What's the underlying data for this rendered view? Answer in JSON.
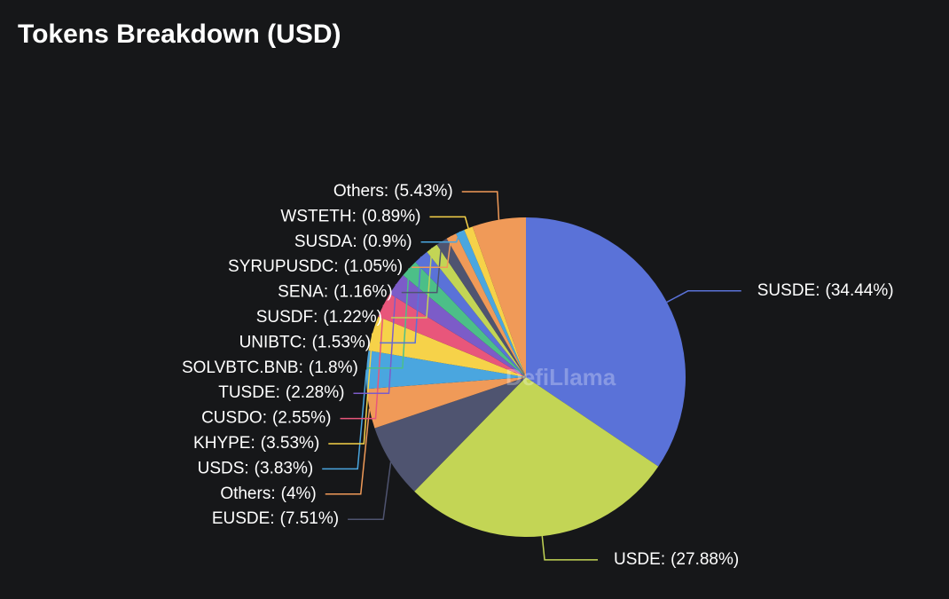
{
  "chart_data": {
    "type": "pie",
    "title": "Tokens Breakdown (USD)",
    "watermark": "DefiLlama",
    "categories": [
      "SUSDE:",
      "USDE:",
      "EUSDE:",
      "Others:",
      "USDS:",
      "KHYPE:",
      "CUSDO:",
      "TUSDE:",
      "SOLVBTC.BNB:",
      "UNIBTC:",
      "SUSDF:",
      "SENA:",
      "SYRUPUSDC:",
      "SUSDA:",
      "WSTETH:",
      "Others:"
    ],
    "values": [
      34.44,
      27.88,
      7.51,
      4,
      3.83,
      3.53,
      2.55,
      2.28,
      1.8,
      1.53,
      1.22,
      1.16,
      1.05,
      0.9,
      0.89,
      5.43
    ],
    "value_labels": [
      "(34.44%)",
      "(27.88%)",
      "(7.51%)",
      "(4%)",
      "(3.83%)",
      "(3.53%)",
      "(2.55%)",
      "(2.28%)",
      "(1.8%)",
      "(1.53%)",
      "(1.22%)",
      "(1.16%)",
      "(1.05%)",
      "(0.9%)",
      "(0.89%)",
      "(5.43%)"
    ],
    "colors": [
      "#5a72d8",
      "#c3d555",
      "#4f5470",
      "#f09a58",
      "#4aa6df",
      "#f6d249",
      "#e8567b",
      "#7c5cc8",
      "#4cbf88",
      "#5a72d8",
      "#c3d555",
      "#4f5470",
      "#f09a58",
      "#4aa6df",
      "#f6d249",
      "#f09a58"
    ]
  }
}
